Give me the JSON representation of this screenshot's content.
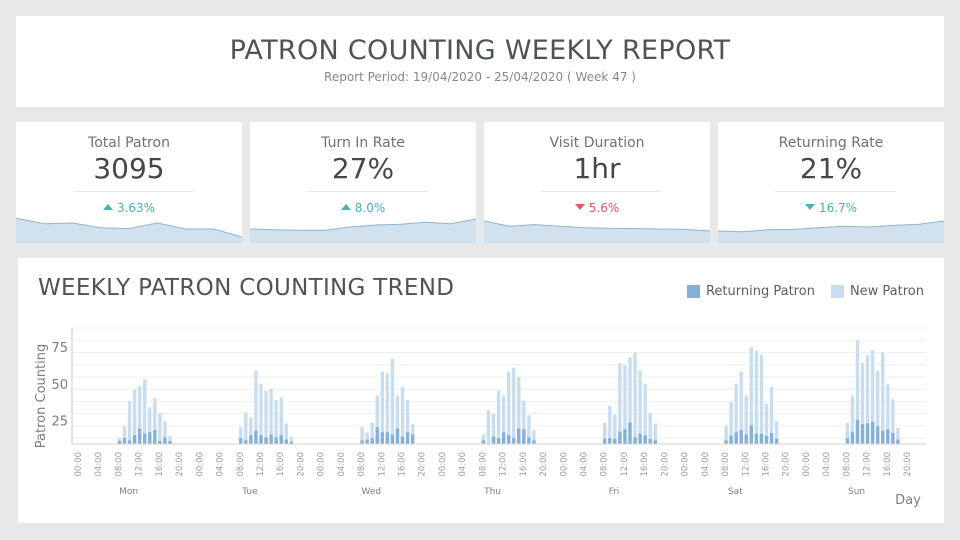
{
  "header": {
    "title": "PATRON COUNTING WEEKLY REPORT",
    "period": "Report Period: 19/04/2020 - 25/04/2020 ( Week 47 )"
  },
  "colors": {
    "background": "#e7e8ea",
    "up": "#4bb0b3",
    "down_bad": "#e45567",
    "spark_fill": "#d2e1ee",
    "spark_line": "#8fb4d3",
    "returning": "#85b1d9",
    "new": "#c8deef"
  },
  "kpis": [
    {
      "label": "Total Patron",
      "value": "3095",
      "change": "3.63%",
      "direction": "up",
      "tone": "up",
      "spark": [
        0.62,
        0.48,
        0.5,
        0.38,
        0.36,
        0.5,
        0.35,
        0.35,
        0.15
      ]
    },
    {
      "label": "Turn In Rate",
      "value": "27%",
      "change": "8.0%",
      "direction": "up",
      "tone": "up",
      "spark": [
        0.35,
        0.33,
        0.32,
        0.32,
        0.4,
        0.45,
        0.47,
        0.52,
        0.48,
        0.6
      ]
    },
    {
      "label": "Visit Duration",
      "value": "1hr",
      "change": "5.6%",
      "direction": "down",
      "tone": "down_bad",
      "spark": [
        0.55,
        0.42,
        0.46,
        0.42,
        0.38,
        0.37,
        0.36,
        0.35,
        0.34,
        0.3
      ]
    },
    {
      "label": "Returning Rate",
      "value": "21%",
      "change": "16.7%",
      "direction": "down",
      "tone": "up",
      "spark": [
        0.3,
        0.28,
        0.33,
        0.34,
        0.38,
        0.42,
        0.4,
        0.44,
        0.47,
        0.55
      ]
    }
  ],
  "chart_data": {
    "type": "bar",
    "title": "WEEKLY PATRON COUNTING TREND",
    "xlabel": "Day",
    "ylabel": "Patron Counting",
    "ylim": [
      9,
      88
    ],
    "yticks": [
      25,
      50,
      75
    ],
    "grid": true,
    "legend_position": "top-right",
    "days": [
      "Mon",
      "Tue",
      "Wed",
      "Thu",
      "Fri",
      "Sat",
      "Sun"
    ],
    "hour_ticks": [
      "00:00",
      "04:00",
      "08:00",
      "12:00",
      "16:00",
      "20:00"
    ],
    "bar_hours": [
      8,
      9,
      10,
      11,
      12,
      13,
      14,
      15,
      16,
      17,
      18
    ],
    "series": [
      {
        "name": "Returning Patron",
        "color": "#85b1d9",
        "values": [
          [
            11,
            13,
            11.5,
            15,
            19.5,
            16,
            17,
            18.5,
            11,
            13.5,
            11
          ],
          [
            13,
            11.5,
            15,
            18,
            15,
            13.5,
            15.5,
            13.5,
            15,
            12,
            10.5
          ],
          [
            11.5,
            12,
            13,
            20.5,
            17,
            17,
            15.5,
            19.5,
            14,
            17,
            15.5
          ],
          [
            11.5,
            9.5,
            14,
            13,
            17,
            15,
            13,
            19.5,
            19,
            13.5,
            11.5
          ],
          [
            12.5,
            13,
            12.5,
            17.5,
            19,
            23.5,
            13.5,
            16,
            15,
            12.5,
            11.5
          ],
          [
            11.5,
            14.5,
            17,
            18.5,
            15.5,
            21.5,
            16,
            16,
            14.5,
            16.5,
            12.5
          ],
          [
            13,
            17,
            25.5,
            22.5,
            23,
            24,
            21,
            18,
            19,
            16.5,
            12
          ]
        ]
      },
      {
        "name": "New Patron",
        "color": "#c8deef",
        "values": [
          [
            13,
            21,
            38,
            46,
            48.5,
            53,
            34,
            40.5,
            30,
            24.5,
            14.5
          ],
          [
            20.5,
            30.5,
            27,
            59,
            50,
            45,
            46.5,
            39,
            40.5,
            23,
            14
          ],
          [
            20.5,
            17,
            23.5,
            42,
            58.5,
            57,
            67,
            42,
            48,
            39,
            22.5
          ],
          [
            15.5,
            32,
            29.5,
            45.5,
            42,
            58.5,
            61,
            54.5,
            38.5,
            28.5,
            18.5
          ],
          [
            23.5,
            35,
            29,
            64,
            62.5,
            68,
            71.5,
            59,
            50,
            30,
            23
          ],
          [
            21.5,
            37.5,
            50,
            58.5,
            42,
            75,
            72.5,
            70,
            36.5,
            48,
            24.5
          ],
          [
            23.5,
            42,
            79.5,
            64.5,
            69.5,
            73,
            59,
            71,
            50,
            39.5,
            20
          ]
        ]
      }
    ]
  }
}
